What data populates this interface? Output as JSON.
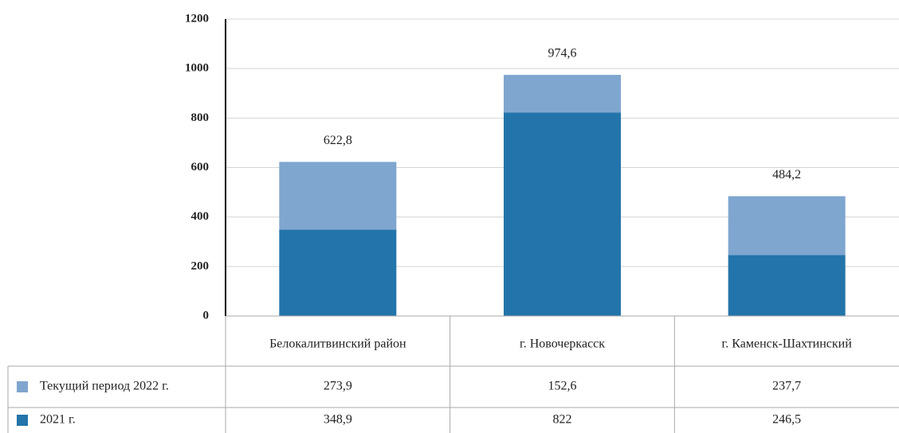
{
  "chart_data": {
    "type": "stacked_bar",
    "categories": [
      "Белокалитвинский район",
      "г. Новочеркасск",
      "г. Каменск-Шахтинский"
    ],
    "series": [
      {
        "name": "Текущий период 2022 г.",
        "color": "#7fa6cf",
        "values": [
          273.9,
          152.6,
          237.7
        ],
        "value_labels": [
          "273,9",
          "152,6",
          "237,7"
        ]
      },
      {
        "name": "2021 г.",
        "color": "#2374aa",
        "values": [
          348.9,
          822,
          246.5
        ],
        "value_labels": [
          "348,9",
          "822",
          "246,5"
        ]
      }
    ],
    "totals": {
      "values": [
        622.8,
        974.6,
        484.2
      ],
      "value_labels": [
        "622,8",
        "974,6",
        "484,2"
      ]
    },
    "ylim": [
      0,
      1200
    ],
    "yticks": [
      0,
      200,
      400,
      600,
      800,
      1000,
      1200
    ],
    "grid": true
  }
}
